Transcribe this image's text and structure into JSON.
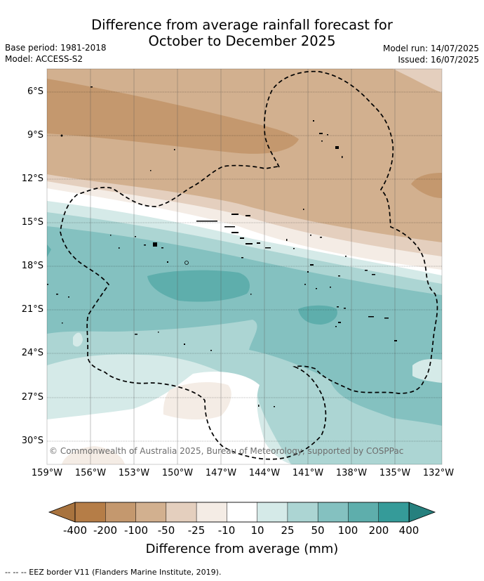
{
  "title_line1": "Difference from average rainfall forecast for",
  "title_line2": "October to December 2025",
  "base_period": "Base period: 1981-2018",
  "model": "Model: ACCESS-S2",
  "model_run": "Model run: 14/07/2025",
  "issued": "Issued: 16/07/2025",
  "latitudes": [
    "6°S",
    "9°S",
    "12°S",
    "15°S",
    "18°S",
    "21°S",
    "24°S",
    "27°S",
    "30°S"
  ],
  "longitudes": [
    "159°W",
    "156°W",
    "153°W",
    "150°W",
    "147°W",
    "144°W",
    "141°W",
    "138°W",
    "135°W",
    "132°W"
  ],
  "copyright": "© Commonwealth of Australia 2025, Bureau of Meteorology, supported by COSPPac",
  "colorbar": {
    "title": "Difference from average (mm)",
    "tick_labels": [
      "-400",
      "-200",
      "-100",
      "-50",
      "-25",
      "-10",
      "10",
      "25",
      "50",
      "100",
      "200",
      "400"
    ],
    "colors": [
      "#a8733e",
      "#b57d47",
      "#c4986e",
      "#d2b08f",
      "#e4cfbe",
      "#f4ece5",
      "#ffffff",
      "#d5eae8",
      "#acd5d3",
      "#84c1c0",
      "#5eaeac",
      "#359b99",
      "#26807e"
    ]
  },
  "footnote": "-- -- -- EEZ border V11 (Flanders Marine Institute, 2019)."
}
